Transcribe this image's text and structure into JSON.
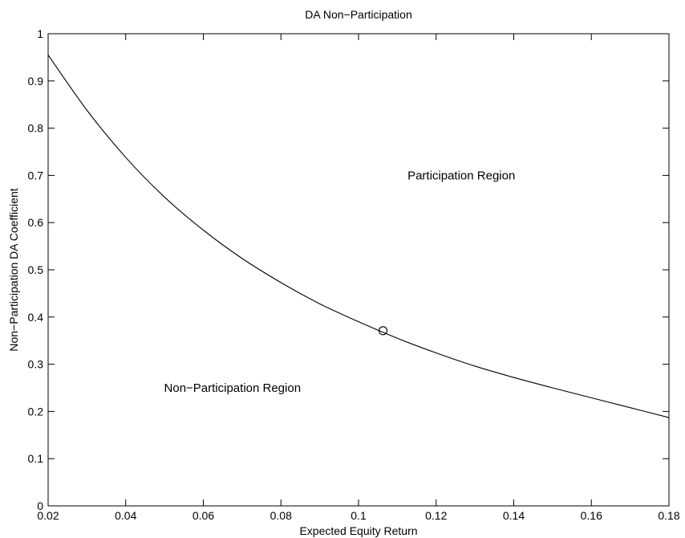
{
  "chart_data": {
    "type": "line",
    "title": "DA Non−Participation",
    "xlabel": "Expected Equity Return",
    "ylabel": "Non−Participation DA Coefficient",
    "xlim": [
      0.02,
      0.18
    ],
    "ylim": [
      0,
      1
    ],
    "x_ticks": [
      0.02,
      0.04,
      0.06,
      0.08,
      0.1,
      0.12,
      0.14,
      0.16,
      0.18
    ],
    "x_tick_labels": [
      "0.02",
      "0.04",
      "0.06",
      "0.08",
      "0.1",
      "0.12",
      "0.14",
      "0.16",
      "0.18"
    ],
    "y_ticks": [
      0,
      0.1,
      0.2,
      0.3,
      0.4,
      0.5,
      0.6,
      0.7,
      0.8,
      0.9,
      1
    ],
    "y_tick_labels": [
      "0",
      "0.1",
      "0.2",
      "0.3",
      "0.4",
      "0.5",
      "0.6",
      "0.7",
      "0.8",
      "0.9",
      "1"
    ],
    "grid": false,
    "series": [
      {
        "color": "#000000",
        "x": [
          0.02,
          0.03,
          0.04,
          0.05,
          0.06,
          0.07,
          0.08,
          0.09,
          0.1,
          0.11,
          0.12,
          0.13,
          0.14,
          0.15,
          0.16,
          0.17,
          0.18
        ],
        "y": [
          0.955,
          0.838,
          0.738,
          0.654,
          0.584,
          0.524,
          0.473,
          0.428,
          0.39,
          0.355,
          0.324,
          0.296,
          0.272,
          0.25,
          0.229,
          0.208,
          0.187
        ]
      }
    ],
    "marker_point": {
      "x": 0.1063,
      "y": 0.371,
      "shape": "open-circle"
    },
    "annotations": [
      {
        "text": "Participation Region",
        "x": 0.1265,
        "y": 0.7
      },
      {
        "text": "Non−Participation Region",
        "x": 0.0675,
        "y": 0.25
      }
    ]
  }
}
